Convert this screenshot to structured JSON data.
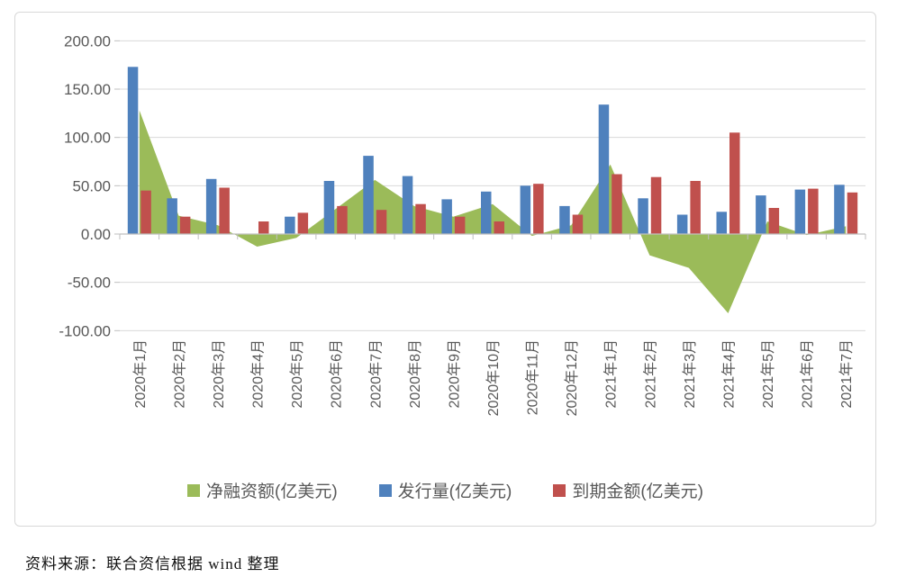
{
  "source_note": "资料来源：联合资信根据 wind 整理",
  "palette": {
    "net_financing_green": "#9BBB59",
    "issuance_blue": "#4F81BD",
    "maturity_red": "#C0504D",
    "gridline": "#D9D9D9",
    "axis_line": "#BFBFBF",
    "tick_label": "#595959",
    "panel_border": "#D8D8D8"
  },
  "chart_data": {
    "type": "combo",
    "combo_note": "net financing series rendered as filled area behind grouped columns for issuance and maturity",
    "categories": [
      "2020年1月",
      "2020年2月",
      "2020年3月",
      "2020年4月",
      "2020年5月",
      "2020年6月",
      "2020年7月",
      "2020年8月",
      "2020年9月",
      "2020年10月",
      "2020年11月",
      "2020年12月",
      "2021年1月",
      "2021年2月",
      "2021年3月",
      "2021年4月",
      "2021年5月",
      "2021年6月",
      "2021年7月"
    ],
    "series": [
      {
        "name": "净融资额(亿美元)",
        "chart_type": "area",
        "color": "#9BBB59",
        "values": [
          128,
          19,
          9,
          -13,
          -4,
          26,
          56,
          29,
          18,
          31,
          -2,
          9,
          72,
          -22,
          -35,
          -82,
          13,
          -1,
          8
        ]
      },
      {
        "name": "发行量(亿美元)",
        "chart_type": "column",
        "color": "#4F81BD",
        "values": [
          173,
          37,
          57,
          0,
          18,
          55,
          81,
          60,
          36,
          44,
          50,
          29,
          134,
          37,
          20,
          23,
          40,
          46,
          51
        ]
      },
      {
        "name": "到期金额(亿美元)",
        "chart_type": "column",
        "color": "#C0504D",
        "values": [
          45,
          18,
          48,
          13,
          22,
          29,
          25,
          31,
          18,
          13,
          52,
          20,
          62,
          59,
          55,
          105,
          27,
          47,
          43
        ]
      }
    ],
    "title": "",
    "xlabel": "",
    "ylabel": "",
    "ylim": [
      -100,
      200
    ],
    "y_ticks": [
      {
        "value": 200,
        "label": "200.00"
      },
      {
        "value": 150,
        "label": "150.00"
      },
      {
        "value": 100,
        "label": "100.00"
      },
      {
        "value": 50,
        "label": "50.00"
      },
      {
        "value": 0,
        "label": "0.00"
      },
      {
        "value": -50,
        "label": "-50.00"
      },
      {
        "value": -100,
        "label": "-100.00"
      }
    ],
    "grid": true,
    "legend_position": "bottom"
  }
}
